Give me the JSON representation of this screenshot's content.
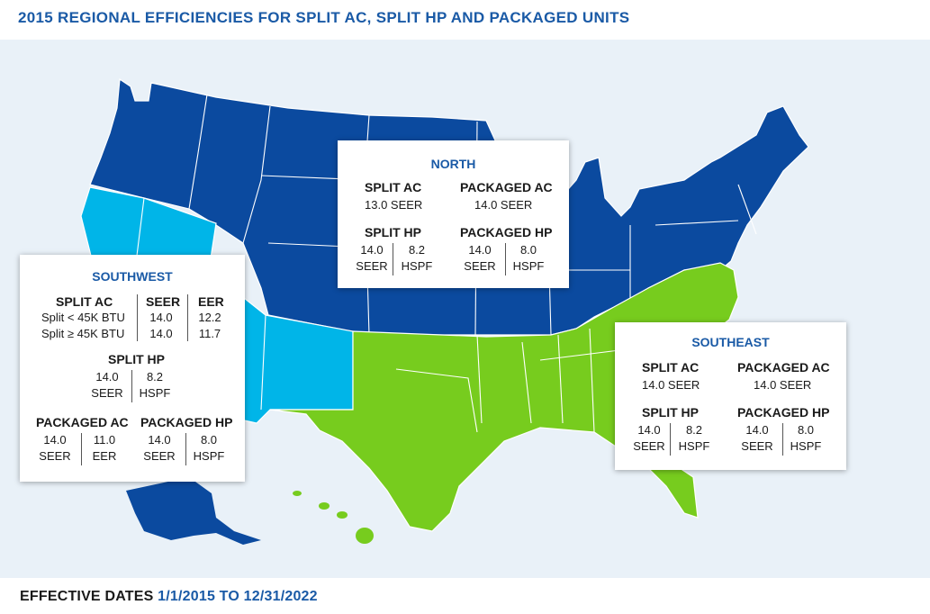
{
  "title": "2015 REGIONAL EFFICIENCIES FOR SPLIT AC, SPLIT HP AND PACKAGED UNITS",
  "footer": {
    "label": "EFFECTIVE DATES",
    "dates": "1/1/2015 TO 12/31/2022"
  },
  "colors": {
    "north": "#0b4a9f",
    "southwest": "#00b5e8",
    "southeast": "#77cc1e",
    "accent": "#1a5aa6"
  },
  "regions": {
    "north": {
      "name": "NORTH",
      "split_ac": {
        "label": "SPLIT AC",
        "value": "13.0 SEER"
      },
      "packaged_ac": {
        "label": "PACKAGED AC",
        "value": "14.0 SEER"
      },
      "split_hp": {
        "label": "SPLIT HP",
        "seer": "14.0",
        "seer_unit": "SEER",
        "hspf": "8.2",
        "hspf_unit": "HSPF"
      },
      "packaged_hp": {
        "label": "PACKAGED HP",
        "seer": "14.0",
        "seer_unit": "SEER",
        "hspf": "8.0",
        "hspf_unit": "HSPF"
      }
    },
    "southwest": {
      "name": "SOUTHWEST",
      "split_ac": {
        "label": "SPLIT AC",
        "col_seer": "SEER",
        "col_eer": "EER",
        "rows": [
          {
            "label": "Split < 45K BTU",
            "seer": "14.0",
            "eer": "12.2"
          },
          {
            "label": "Split ≥ 45K BTU",
            "seer": "14.0",
            "eer": "11.7"
          }
        ]
      },
      "split_hp": {
        "label": "SPLIT HP",
        "seer": "14.0",
        "seer_unit": "SEER",
        "hspf": "8.2",
        "hspf_unit": "HSPF"
      },
      "packaged_ac": {
        "label": "PACKAGED AC",
        "seer": "14.0",
        "seer_unit": "SEER",
        "eer": "11.0",
        "eer_unit": "EER"
      },
      "packaged_hp": {
        "label": "PACKAGED HP",
        "seer": "14.0",
        "seer_unit": "SEER",
        "hspf": "8.0",
        "hspf_unit": "HSPF"
      }
    },
    "southeast": {
      "name": "SOUTHEAST",
      "split_ac": {
        "label": "SPLIT AC",
        "value": "14.0 SEER"
      },
      "packaged_ac": {
        "label": "PACKAGED AC",
        "value": "14.0 SEER"
      },
      "split_hp": {
        "label": "SPLIT HP",
        "seer": "14.0",
        "seer_unit": "SEER",
        "hspf": "8.2",
        "hspf_unit": "HSPF"
      },
      "packaged_hp": {
        "label": "PACKAGED HP",
        "seer": "14.0",
        "seer_unit": "SEER",
        "hspf": "8.0",
        "hspf_unit": "HSPF"
      }
    }
  }
}
